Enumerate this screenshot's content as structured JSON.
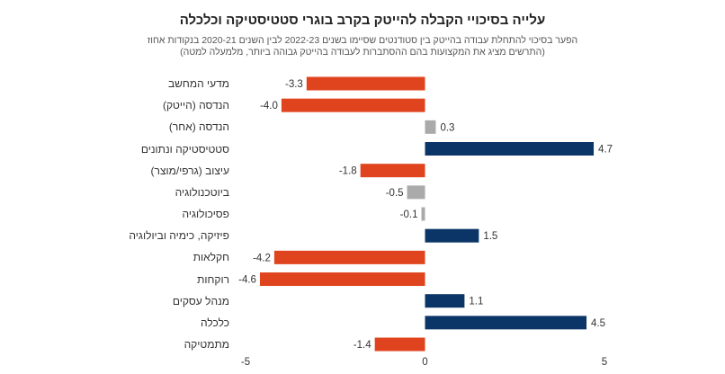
{
  "chart_data": {
    "type": "bar",
    "orientation": "horizontal",
    "title": "עלייה בסיכויי הקבלה להייטק בקרב בוגרי סטטיסטיקה וכלכלה",
    "subtitle_lines": [
      "הפער בסיכוי להתחלת עבודה בהייטק בין סטודנטים שסיימו בשנים 2022-23 לבין השנים 2020-21 בנקודות אחוז",
      "(התרשים מציג את המקצועות בהם ההסתברות לעבודה בהייטק גבוהה ביותר, מלמעלה למטה)"
    ],
    "categories": [
      "מדעי המחשב",
      "הנדסה (הייטק)",
      "הנדסה (אחר)",
      "סטטיסטיקה ונתונים",
      "עיצוב (גרפי/מוצר)",
      "ביוטכנולוגיה",
      "פסיכולוגיה",
      "פיזיקה, כימיה וביולוגיה",
      "חקלאות",
      "רוקחות",
      "מנהל עסקים",
      "כלכלה",
      "מתמטיקה"
    ],
    "values": [
      -3.3,
      -4.0,
      0.3,
      4.7,
      -1.8,
      -0.5,
      -0.1,
      1.5,
      -4.2,
      -4.6,
      1.1,
      4.5,
      -1.4
    ],
    "value_labels": [
      "-3.3",
      "-4.0",
      "0.3",
      "4.7",
      "-1.8",
      "-0.5",
      "-0.1",
      "1.5",
      "-4.2",
      "-4.6",
      "1.1",
      "4.5",
      "-1.4"
    ],
    "colors": [
      "#e0441e",
      "#e0441e",
      "#aaaaaa",
      "#0a3566",
      "#e0441e",
      "#aaaaaa",
      "#aaaaaa",
      "#0a3566",
      "#e0441e",
      "#e0441e",
      "#0a3566",
      "#0a3566",
      "#e0441e"
    ],
    "xlim": [
      -5,
      5
    ],
    "xticks": [
      -5,
      0,
      5
    ],
    "xtick_labels": [
      "-5",
      "0",
      "5"
    ],
    "grid": false
  }
}
